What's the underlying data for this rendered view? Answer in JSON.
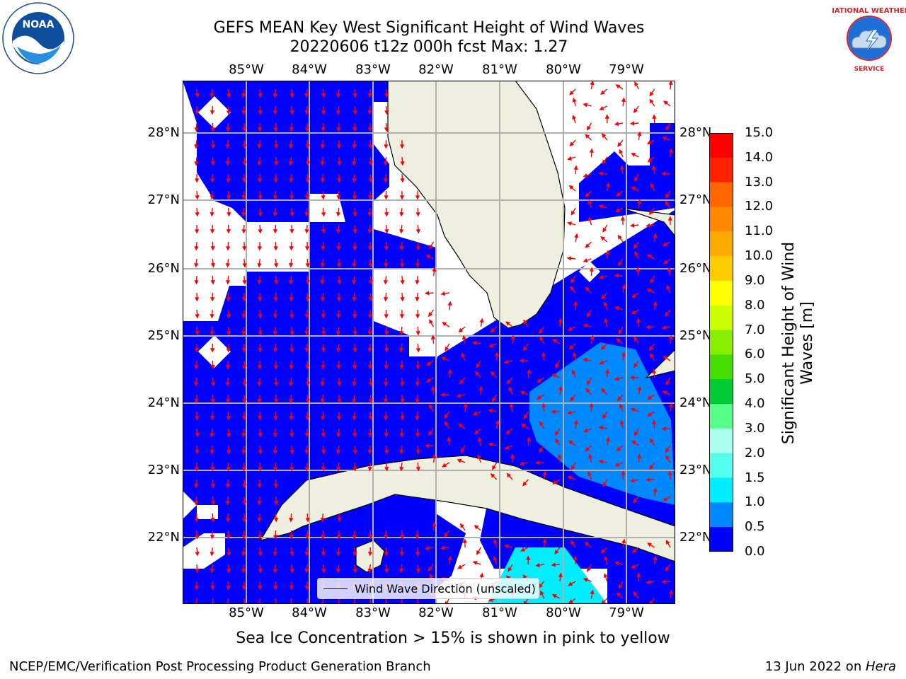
{
  "title": {
    "line1": "GEFS MEAN Key West Significant Height of Wind Waves",
    "line2": "20220606 t12z 000h fcst   Max: 1.27"
  },
  "logos": {
    "left": "NOAA",
    "right": "NATIONAL WEATHER SERVICE"
  },
  "map": {
    "lon_labels": [
      "85°W",
      "84°W",
      "83°W",
      "82°W",
      "81°W",
      "80°W",
      "79°W"
    ],
    "lat_labels": [
      "28°N",
      "27°N",
      "26°N",
      "25°N",
      "24°N",
      "23°N",
      "22°N"
    ],
    "legend_label": "Wind Wave Direction (unscaled)"
  },
  "colorbar": {
    "label": "Significant Height of Wind Waves [m]",
    "ticks": [
      "15.0",
      "14.0",
      "13.0",
      "12.0",
      "11.0",
      "10.0",
      "9.0",
      "8.0",
      "7.0",
      "6.0",
      "5.0",
      "4.0",
      "3.0",
      "2.0",
      "1.5",
      "1.0",
      "0.5",
      "0.0"
    ],
    "colors": [
      "#ff0000",
      "#ff2200",
      "#ff4400",
      "#ff6600",
      "#ff8800",
      "#ffaa00",
      "#ffcc00",
      "#ffee00",
      "#ffff00",
      "#ccff00",
      "#88ee00",
      "#44dd00",
      "#00dd00",
      "#00cc33",
      "#55ff88",
      "#aaffee",
      "#55ffee",
      "#00ffff",
      "#00eeff",
      "#0088ff",
      "#0000ff"
    ]
  },
  "footer": {
    "ice_note": "Sea Ice Concentration > 15% is shown in pink to yellow",
    "credit": "NCEP/EMC/Verification Post Processing Product Generation Branch",
    "date": "13 Jun 2022 on ",
    "machine": "Hera"
  }
}
